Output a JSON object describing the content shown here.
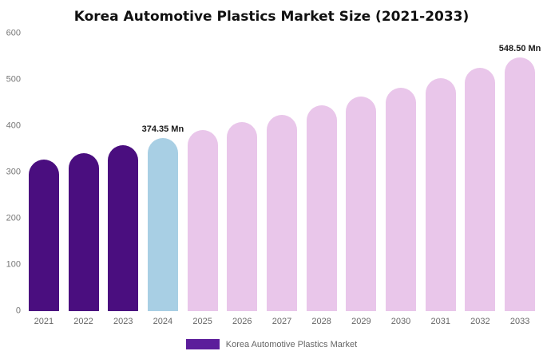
{
  "chart_data": {
    "type": "bar",
    "title": "Korea Automotive Plastics Market Size (2021-2033)",
    "xlabel": "",
    "ylabel": "",
    "ylim": [
      0,
      600
    ],
    "yticks": [
      0,
      100,
      200,
      300,
      400,
      500,
      600
    ],
    "grid": false,
    "legend_position": "bottom",
    "categories": [
      "2021",
      "2022",
      "2023",
      "2024",
      "2025",
      "2026",
      "2027",
      "2028",
      "2029",
      "2030",
      "2031",
      "2032",
      "2033"
    ],
    "values": [
      327,
      342,
      358,
      374.35,
      391,
      408,
      425,
      444,
      463,
      483,
      504,
      526,
      548.5
    ],
    "bar_colors": [
      "#4a0e7f",
      "#4a0e7f",
      "#4a0e7f",
      "#a8cfe4",
      "#e9c6ea",
      "#e9c6ea",
      "#e9c6ea",
      "#e9c6ea",
      "#e9c6ea",
      "#e9c6ea",
      "#e9c6ea",
      "#e9c6ea",
      "#e9c6ea"
    ],
    "annotations": [
      {
        "category": "2024",
        "text": "374.35 Mn"
      },
      {
        "category": "2033",
        "text": "548.50 Mn"
      }
    ],
    "legend": [
      {
        "label": "Korea Automotive Plastics Market",
        "color": "#5c1d9b"
      }
    ]
  }
}
